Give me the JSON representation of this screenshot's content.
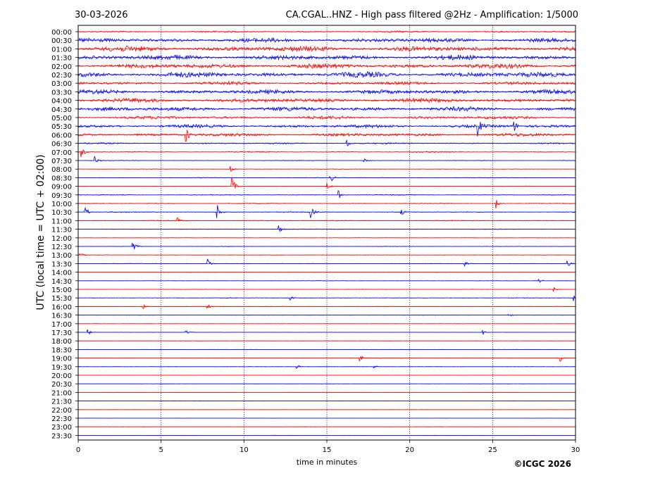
{
  "header": {
    "date": "30-03-2026",
    "title": "CA.CGAL..HNZ - High pass filtered @2Hz - Amplification: 1/5000"
  },
  "footer": {
    "copyright": "©ICGC 2026"
  },
  "colors": {
    "red": "#ff0000",
    "blue": "#0000ff",
    "grid": "#00008b"
  },
  "chart_data": {
    "type": "line",
    "title": "CA.CGAL..HNZ - High pass filtered @2Hz - Amplification: 1/5000",
    "xlabel": "time in minutes",
    "ylabel": "UTC (local time = UTC + 02:00)",
    "xlim": [
      0,
      30
    ],
    "x_ticks": [
      0,
      5,
      10,
      15,
      20,
      25,
      30
    ],
    "x_tick_labels": [
      "0",
      "5",
      "10",
      "15",
      "20",
      "25",
      "30"
    ],
    "vertical_gridlines": [
      5,
      10,
      15,
      20,
      25
    ],
    "row_labels": [
      "00:00",
      "00:30",
      "01:00",
      "01:30",
      "02:00",
      "02:30",
      "03:00",
      "03:30",
      "04:00",
      "04:30",
      "05:00",
      "05:30",
      "06:00",
      "06:30",
      "07:00",
      "07:30",
      "08:00",
      "08:30",
      "09:00",
      "09:30",
      "10:00",
      "10:30",
      "11:00",
      "11:30",
      "12:00",
      "12:30",
      "13:00",
      "13:30",
      "14:00",
      "14:30",
      "15:00",
      "15:30",
      "16:00",
      "16:30",
      "17:00",
      "17:30",
      "18:00",
      "18:30",
      "19:00",
      "19:30",
      "20:00",
      "20:30",
      "21:00",
      "21:30",
      "22:00",
      "22:30",
      "23:00",
      "23:30"
    ],
    "row_colors": [
      "red",
      "blue"
    ],
    "row_noise_level": [
      0.3,
      0.8,
      1.0,
      0.9,
      0.9,
      1.0,
      0.6,
      0.8,
      0.8,
      0.8,
      0.6,
      0.6,
      0.6,
      0.25,
      0.2,
      0.1,
      0.1,
      0.1,
      0.1,
      0.15,
      0.15,
      0.15,
      0.15,
      0.1,
      0.08,
      0.08,
      0.08,
      0.08,
      0.08,
      0.08,
      0.08,
      0.1,
      0.08,
      0.06,
      0.06,
      0.05,
      0.05,
      0.04,
      0.05,
      0.04,
      0.04,
      0.04,
      0.03,
      0.03,
      0.03,
      0.03,
      0.03,
      0.03
    ],
    "events": [
      {
        "row": 11,
        "x": 24.1,
        "amp": 1.0
      },
      {
        "row": 11,
        "x": 26.3,
        "amp": 0.5
      },
      {
        "row": 12,
        "x": 6.5,
        "amp": 0.8
      },
      {
        "row": 13,
        "x": 16.2,
        "amp": 0.5
      },
      {
        "row": 14,
        "x": 0.2,
        "amp": 0.7
      },
      {
        "row": 15,
        "x": 1.0,
        "amp": 0.5
      },
      {
        "row": 15,
        "x": 17.2,
        "amp": 0.3
      },
      {
        "row": 16,
        "x": 9.2,
        "amp": 0.4
      },
      {
        "row": 17,
        "x": 15.2,
        "amp": 0.6
      },
      {
        "row": 18,
        "x": 9.3,
        "amp": 1.0
      },
      {
        "row": 18,
        "x": 15.0,
        "amp": 0.4
      },
      {
        "row": 19,
        "x": 15.7,
        "amp": 0.5
      },
      {
        "row": 20,
        "x": 25.2,
        "amp": 0.6
      },
      {
        "row": 21,
        "x": 0.4,
        "amp": 0.8
      },
      {
        "row": 21,
        "x": 8.4,
        "amp": 0.8
      },
      {
        "row": 21,
        "x": 14.0,
        "amp": 0.8
      },
      {
        "row": 21,
        "x": 19.5,
        "amp": 0.3
      },
      {
        "row": 22,
        "x": 6.0,
        "amp": 0.3
      },
      {
        "row": 23,
        "x": 12.1,
        "amp": 0.5
      },
      {
        "row": 25,
        "x": 3.3,
        "amp": 0.6
      },
      {
        "row": 26,
        "x": 0.1,
        "amp": 0.3
      },
      {
        "row": 27,
        "x": 7.8,
        "amp": 0.6
      },
      {
        "row": 27,
        "x": 23.3,
        "amp": 0.4
      },
      {
        "row": 27,
        "x": 29.5,
        "amp": 0.4
      },
      {
        "row": 29,
        "x": 27.8,
        "amp": 0.3
      },
      {
        "row": 30,
        "x": 28.6,
        "amp": 0.4
      },
      {
        "row": 31,
        "x": 12.8,
        "amp": 0.3
      },
      {
        "row": 31,
        "x": 29.9,
        "amp": 0.3
      },
      {
        "row": 32,
        "x": 3.9,
        "amp": 0.3
      },
      {
        "row": 32,
        "x": 7.8,
        "amp": 0.3
      },
      {
        "row": 33,
        "x": 25.9,
        "amp": 0.25
      },
      {
        "row": 35,
        "x": 0.6,
        "amp": 0.3
      },
      {
        "row": 35,
        "x": 6.5,
        "amp": 0.3
      },
      {
        "row": 35,
        "x": 24.4,
        "amp": 0.3
      },
      {
        "row": 38,
        "x": 17.0,
        "amp": 0.35
      },
      {
        "row": 38,
        "x": 29.1,
        "amp": 0.35
      },
      {
        "row": 39,
        "x": 13.2,
        "amp": 0.25
      },
      {
        "row": 39,
        "x": 17.8,
        "amp": 0.25
      }
    ],
    "grid": true
  }
}
